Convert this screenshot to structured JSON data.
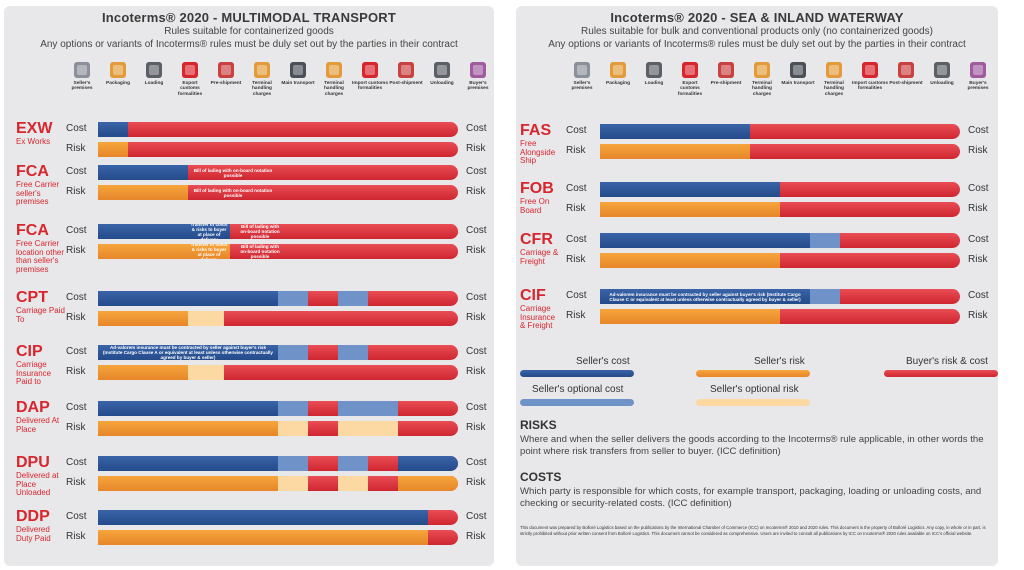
{
  "left_panel": {
    "title": "Incoterms® 2020 - MULTIMODAL TRANSPORT",
    "subtitle": "Rules suitable for containerized goods",
    "subtitle2": "Any options or variants of Incoterms® rules must be duly set out by the parties in their contract",
    "stages": [
      {
        "label": "Seller's premises",
        "icon": "warehouse-icon"
      },
      {
        "label": "Packaging",
        "icon": "box-icon"
      },
      {
        "label": "Loading",
        "icon": "forklift-icon"
      },
      {
        "label": "Export customs formalities",
        "icon": "customs-icon"
      },
      {
        "label": "Pre-shipment",
        "icon": "truck-icon"
      },
      {
        "label": "Terminal handling charges",
        "icon": "crane-icon"
      },
      {
        "label": "Main transport",
        "icon": "plane-icon"
      },
      {
        "label": "Terminal handling charges",
        "icon": "crane-icon"
      },
      {
        "label": "Import customs formalities",
        "icon": "customs-icon"
      },
      {
        "label": "Post-shipment",
        "icon": "truck-icon"
      },
      {
        "label": "Unloading",
        "icon": "forklift-icon"
      },
      {
        "label": "Buyer's premises",
        "icon": "warehouse-icon"
      }
    ],
    "cost_label": "Cost",
    "risk_label": "Risk",
    "terms": [
      {
        "code": "EXW",
        "desc": "Ex Works",
        "cost": [
          {
            "t": "sc",
            "s": 0,
            "e": 1
          }
        ],
        "risk": [
          {
            "t": "sr",
            "s": 0,
            "e": 1
          }
        ]
      },
      {
        "code": "FCA",
        "desc": "Free Carrier seller's premises",
        "cost": [
          {
            "t": "sc",
            "s": 0,
            "e": 3,
            "note": "Bill of lading with on-board notation possible",
            "ns": 3,
            "ne": 6
          }
        ],
        "risk": [
          {
            "t": "sr",
            "s": 0,
            "e": 3,
            "note": "Bill of lading with on-board notation possible",
            "ns": 3,
            "ne": 6
          }
        ]
      },
      {
        "code": "FCA",
        "desc": "Free Carrier location other than seller's premises",
        "cost": [
          {
            "t": "sc",
            "s": 0,
            "e": 3
          },
          {
            "t": "sc",
            "s": 3,
            "e": 4.4,
            "note": "Transfer of costs & risks to buyer at place of delivery"
          },
          {
            "t": "br",
            "s": 4.4,
            "e": 12,
            "note": "Bill of lading with on-board notation possible",
            "ns": 4.6,
            "ne": 6.2
          }
        ],
        "risk": [
          {
            "t": "sr",
            "s": 0,
            "e": 3
          },
          {
            "t": "sr",
            "s": 3,
            "e": 4.4,
            "note": "Transfer of costs & risks to buyer at place of delivery"
          },
          {
            "t": "br",
            "s": 4.4,
            "e": 12,
            "note": "Bill of lading with on-board notation possible",
            "ns": 4.6,
            "ne": 6.2
          }
        ]
      },
      {
        "code": "CPT",
        "desc": "Carriage Paid To",
        "cost": [
          {
            "t": "sc",
            "s": 0,
            "e": 6
          },
          {
            "t": "so",
            "s": 6,
            "e": 7
          },
          {
            "t": "so",
            "s": 8,
            "e": 9
          }
        ],
        "risk": [
          {
            "t": "sr",
            "s": 0,
            "e": 3
          },
          {
            "t": "ro",
            "s": 3,
            "e": 4.2
          }
        ]
      },
      {
        "code": "CIP",
        "desc": "Carriage Insurance Paid to",
        "cost": [
          {
            "t": "sc",
            "s": 0,
            "e": 6,
            "note": "Ad-valorem insurance must be contracted by seller against buyer's risk (Institute Cargo Clause A or equivalent at least unless otherwise contractually agreed by buyer & seller)"
          },
          {
            "t": "so",
            "s": 6,
            "e": 7
          },
          {
            "t": "so",
            "s": 8,
            "e": 9
          }
        ],
        "risk": [
          {
            "t": "sr",
            "s": 0,
            "e": 3
          },
          {
            "t": "ro",
            "s": 3,
            "e": 4.2
          }
        ]
      },
      {
        "code": "DAP",
        "desc": "Delivered At Place",
        "cost": [
          {
            "t": "sc",
            "s": 0,
            "e": 6
          },
          {
            "t": "so",
            "s": 6,
            "e": 7
          },
          {
            "t": "so",
            "s": 8,
            "e": 9
          },
          {
            "t": "so",
            "s": 9,
            "e": 10
          }
        ],
        "risk": [
          {
            "t": "sr",
            "s": 0,
            "e": 6
          },
          {
            "t": "ro",
            "s": 6,
            "e": 7
          },
          {
            "t": "ro",
            "s": 8,
            "e": 9
          },
          {
            "t": "ro",
            "s": 9,
            "e": 10
          }
        ]
      },
      {
        "code": "DPU",
        "desc": "Delivered at Place Unloaded",
        "cost": [
          {
            "t": "sc",
            "s": 0,
            "e": 6
          },
          {
            "t": "so",
            "s": 6,
            "e": 7
          },
          {
            "t": "so",
            "s": 8,
            "e": 9
          },
          {
            "t": "sc",
            "s": 10,
            "e": 12
          }
        ],
        "risk": [
          {
            "t": "sr",
            "s": 0,
            "e": 6
          },
          {
            "t": "ro",
            "s": 6,
            "e": 7
          },
          {
            "t": "ro",
            "s": 8,
            "e": 9
          },
          {
            "t": "sr",
            "s": 10,
            "e": 12
          }
        ]
      },
      {
        "code": "DDP",
        "desc": "Delivered Duty Paid",
        "cost": [
          {
            "t": "sc",
            "s": 0,
            "e": 11
          }
        ],
        "risk": [
          {
            "t": "sr",
            "s": 0,
            "e": 11
          }
        ]
      }
    ]
  },
  "right_panel": {
    "title": "Incoterms® 2020 - SEA & INLAND WATERWAY",
    "subtitle": "Rules suitable for bulk and conventional products only (no containerized goods)",
    "subtitle2": "Any options or variants of Incoterms® rules must be duly set out by the parties in their contract",
    "stages": [
      {
        "label": "Seller's premises",
        "icon": "warehouse-icon"
      },
      {
        "label": "Packaging",
        "icon": "box-icon"
      },
      {
        "label": "Loading",
        "icon": "forklift-icon"
      },
      {
        "label": "Export customs formalities",
        "icon": "customs-icon"
      },
      {
        "label": "Pre-shipment",
        "icon": "truck-icon"
      },
      {
        "label": "Terminal handling charges",
        "icon": "crane-icon"
      },
      {
        "label": "Main transport",
        "icon": "ship-icon"
      },
      {
        "label": "Terminal handling charges",
        "icon": "crane-icon"
      },
      {
        "label": "Import customs formalities",
        "icon": "customs-icon"
      },
      {
        "label": "Post-shipment",
        "icon": "truck-icon"
      },
      {
        "label": "Unloading",
        "icon": "forklift-icon"
      },
      {
        "label": "Buyer's premises",
        "icon": "warehouse-icon"
      }
    ],
    "cost_label": "Cost",
    "risk_label": "Risk",
    "terms": [
      {
        "code": "FAS",
        "desc": "Free Alongside Ship",
        "cost": [
          {
            "t": "sc",
            "s": 0,
            "e": 5
          }
        ],
        "risk": [
          {
            "t": "sr",
            "s": 0,
            "e": 5
          }
        ]
      },
      {
        "code": "FOB",
        "desc": "Free On Board",
        "cost": [
          {
            "t": "sc",
            "s": 0,
            "e": 6
          }
        ],
        "risk": [
          {
            "t": "sr",
            "s": 0,
            "e": 6
          }
        ]
      },
      {
        "code": "CFR",
        "desc": "Carriage & Freight",
        "cost": [
          {
            "t": "sc",
            "s": 0,
            "e": 7
          },
          {
            "t": "so",
            "s": 7,
            "e": 8
          }
        ],
        "risk": [
          {
            "t": "sr",
            "s": 0,
            "e": 6
          }
        ]
      },
      {
        "code": "CIF",
        "desc": "Carriage Insurance & Freight",
        "cost": [
          {
            "t": "sc",
            "s": 0,
            "e": 7,
            "note": "Ad-valorem insurance must be contracted by seller against buyer's risk (Institute Cargo Clause C or equivalent at least unless otherwise contractually agreed by buyer & seller)"
          },
          {
            "t": "so",
            "s": 7,
            "e": 8
          }
        ],
        "risk": [
          {
            "t": "sr",
            "s": 0,
            "e": 6
          }
        ]
      }
    ],
    "legend": {
      "sellers_cost": "Seller's cost",
      "sellers_risk": "Seller's risk",
      "buyers": "Buyer's risk & cost",
      "sellers_opt_cost": "Seller's optional cost",
      "sellers_opt_risk": "Seller's optional risk"
    },
    "risks_heading": "RISKS",
    "risks_text": "Where and when the seller delivers the goods according to the Incoterms® rule applicable, in other words the point where risk transfers from seller to buyer. (ICC definition)",
    "costs_heading": "COSTS",
    "costs_text": "Which party is responsible for which costs, for example transport, packaging, loading or unloading costs, and checking or security-related costs. (ICC definition)",
    "footnote": "This document was prepared by Bolloré Logistics based on the publications by the International Chamber of Commerce (ICC) on Incoterms® 2010 and 2020 rules. This document is the property of Bolloré Logistics. Any copy, in whole or in part, is strictly prohibited without prior written consent from Bolloré Logistics. This document cannot be considered as comprehensive. Users are invited to consult all publications by ICC on Incoterms® 2020 rules available on ICC's official website."
  },
  "colors": {
    "sellers_cost": "#2f5a9e",
    "sellers_optional_cost": "#6f93c9",
    "sellers_risk": "#f29a36",
    "sellers_optional_risk": "#fcd9a2",
    "buyers_risk_cost": "#dc3a42",
    "term_red": "#d8262e"
  }
}
